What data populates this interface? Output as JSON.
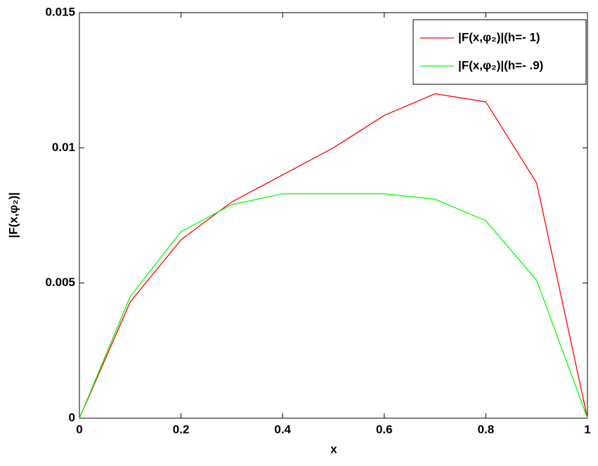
{
  "chart_data": {
    "type": "line",
    "xlabel": "x",
    "ylabel": "|F(x,φ₂)|",
    "x": [
      0,
      0.1,
      0.2,
      0.3,
      0.4,
      0.5,
      0.6,
      0.7,
      0.8,
      0.9,
      1
    ],
    "series": [
      {
        "name": "|F(x,φ₂)|(h=- 1)",
        "color": "#ff0000",
        "values": [
          0,
          0.0043,
          0.0066,
          0.008,
          0.009,
          0.01,
          0.0112,
          0.012,
          0.0117,
          0.0087,
          0
        ]
      },
      {
        "name": "|F(x,φ₂)|(h=- .9)",
        "color": "#00ff00",
        "values": [
          0,
          0.0045,
          0.0069,
          0.0079,
          0.0083,
          0.0083,
          0.0083,
          0.0081,
          0.0073,
          0.0051,
          0
        ]
      }
    ],
    "xlim": [
      0,
      1
    ],
    "xticks": [
      0,
      0.2,
      0.4,
      0.6,
      0.8,
      1
    ],
    "ylim": [
      0,
      0.015
    ],
    "yticks": [
      0,
      0.005,
      0.01,
      0.015
    ],
    "legend": "northeast",
    "grid": false
  }
}
